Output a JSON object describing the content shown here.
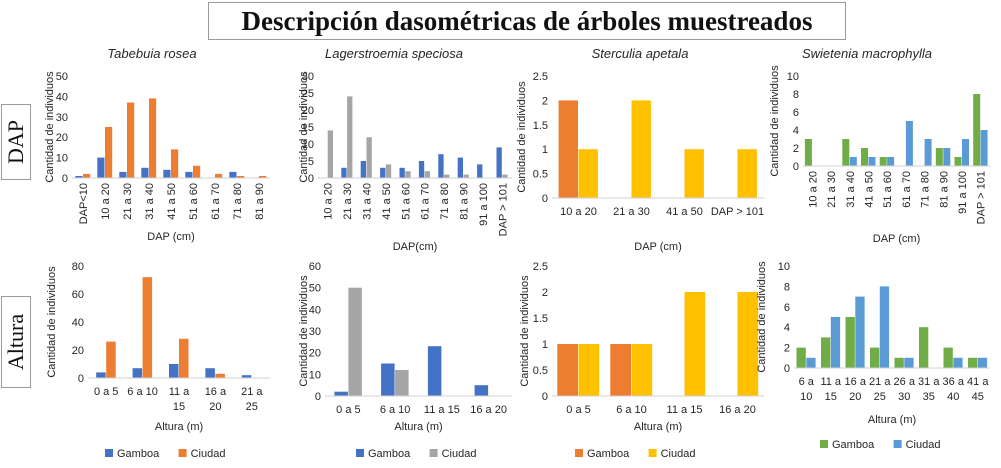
{
  "title": "Descripción dasométricas de árboles muestreados",
  "row_labels": {
    "dap": "DAP",
    "altura": "Altura"
  },
  "legends": [
    {
      "items": [
        {
          "name": "Gamboa",
          "color": "#4472C4"
        },
        {
          "name": "Ciudad",
          "color": "#ED7D31"
        }
      ]
    },
    {
      "items": [
        {
          "name": "Gamboa",
          "color": "#4472C4"
        },
        {
          "name": "Ciudad",
          "color": "#A5A5A5"
        }
      ]
    },
    {
      "items": [
        {
          "name": "Gamboa",
          "color": "#ED7D31"
        },
        {
          "name": "Ciudad",
          "color": "#FFC000"
        }
      ]
    },
    {
      "items": [
        {
          "name": "Gamboa",
          "color": "#70AD47"
        },
        {
          "name": "Ciudad",
          "color": "#5B9BD5"
        }
      ]
    }
  ],
  "chart_data": [
    {
      "type": "bar",
      "title": "Tabebuia rosea",
      "xlabel": "DAP (cm)",
      "ylabel": "Cantidad de individuos",
      "ylim": [
        0,
        50
      ],
      "yticks": [
        0,
        10,
        20,
        30,
        40,
        50
      ],
      "grid": false,
      "categories": [
        "DAP<10",
        "10 a 20",
        "21 a 30",
        "31 a 40",
        "41 a 50",
        "51 a 60",
        "61 a 70",
        "71 a 80",
        "81 a 90"
      ],
      "series": [
        {
          "name": "Gamboa",
          "color": "#4472C4",
          "values": [
            1,
            10,
            3,
            5,
            4,
            3,
            0,
            3,
            0
          ]
        },
        {
          "name": "Ciudad",
          "color": "#ED7D31",
          "values": [
            2,
            25,
            37,
            39,
            14,
            6,
            2,
            1,
            1
          ]
        }
      ]
    },
    {
      "type": "bar",
      "title": "Lagerstroemia speciosa",
      "xlabel": "DAP(cm)",
      "ylabel": "Cantidad de individuos",
      "ylim": [
        0,
        30
      ],
      "yticks": [
        0,
        5,
        10,
        15,
        20,
        25,
        30
      ],
      "grid": false,
      "categories": [
        "10 a 20",
        "21 a 30",
        "31 a 40",
        "41 a 50",
        "51 a 60",
        "61 a 70",
        "71 a 80",
        "81 a 90",
        "91 a 100",
        "DAP > 101"
      ],
      "series": [
        {
          "name": "Gamboa",
          "color": "#4472C4",
          "values": [
            0,
            3,
            5,
            3,
            3,
            5,
            7,
            6,
            4,
            9
          ]
        },
        {
          "name": "Ciudad",
          "color": "#A5A5A5",
          "values": [
            14,
            24,
            12,
            4,
            2,
            2,
            1,
            1,
            0,
            1
          ]
        }
      ]
    },
    {
      "type": "bar",
      "title": "Sterculia apetala",
      "xlabel": "DAP (cm)",
      "ylabel": "Cantidad de individuos",
      "ylim": [
        0,
        2.5
      ],
      "yticks": [
        0,
        0.5,
        1,
        1.5,
        2,
        2.5
      ],
      "grid": false,
      "categories": [
        "10 a 20",
        "21 a 30",
        "41 a 50",
        "DAP > 101"
      ],
      "series": [
        {
          "name": "Gamboa",
          "color": "#ED7D31",
          "values": [
            2,
            0,
            0,
            0
          ]
        },
        {
          "name": "Ciudad",
          "color": "#FFC000",
          "values": [
            1,
            2,
            1,
            1
          ]
        }
      ]
    },
    {
      "type": "bar",
      "title": "Swietenia macrophylla",
      "xlabel": "DAP (cm)",
      "ylabel": "Cantidad de individuos",
      "ylim": [
        0,
        10
      ],
      "yticks": [
        0,
        2,
        4,
        6,
        8,
        10
      ],
      "grid": false,
      "categories": [
        "10 a 20",
        "21 a 30",
        "31 a 40",
        "41 a 50",
        "51 a 60",
        "61 a 70",
        "71 a 80",
        "81 a 90",
        "91 a 100",
        "DAP > 101"
      ],
      "series": [
        {
          "name": "Gamboa",
          "color": "#70AD47",
          "values": [
            3,
            0,
            3,
            2,
            1,
            0,
            0,
            2,
            1,
            8
          ]
        },
        {
          "name": "Ciudad",
          "color": "#5B9BD5",
          "values": [
            0,
            0,
            1,
            1,
            1,
            5,
            3,
            2,
            3,
            4
          ]
        }
      ]
    },
    {
      "type": "bar",
      "title": "",
      "xlabel": "Altura (m)",
      "ylabel": "Cantidad de individuos",
      "ylim": [
        0,
        80
      ],
      "yticks": [
        0,
        20,
        40,
        60,
        80
      ],
      "grid": false,
      "categories": [
        [
          "0 a 5"
        ],
        [
          "6 a 10"
        ],
        [
          "11 a",
          "15"
        ],
        [
          "16 a",
          "20"
        ],
        [
          "21 a",
          "25"
        ]
      ],
      "series": [
        {
          "name": "Gamboa",
          "color": "#4472C4",
          "values": [
            4,
            7,
            10,
            7,
            2
          ]
        },
        {
          "name": "Ciudad",
          "color": "#ED7D31",
          "values": [
            26,
            72,
            28,
            3,
            0
          ]
        }
      ]
    },
    {
      "type": "bar",
      "title": "",
      "xlabel": "Altura (m)",
      "ylabel": "Cantidad de individuos",
      "ylim": [
        0,
        60
      ],
      "yticks": [
        0,
        10,
        20,
        30,
        40,
        50,
        60
      ],
      "grid": false,
      "categories": [
        [
          "0 a 5"
        ],
        [
          "6 a 10"
        ],
        [
          "11 a 15"
        ],
        [
          "16 a 20"
        ]
      ],
      "series": [
        {
          "name": "Gamboa",
          "color": "#4472C4",
          "values": [
            2,
            15,
            23,
            5
          ]
        },
        {
          "name": "Ciudad",
          "color": "#A5A5A5",
          "values": [
            50,
            12,
            0,
            0
          ]
        }
      ]
    },
    {
      "type": "bar",
      "title": "",
      "xlabel": "Altura (m)",
      "ylabel": "Cantidad de individuos",
      "ylim": [
        0,
        2.5
      ],
      "yticks": [
        0,
        0.5,
        1,
        1.5,
        2,
        2.5
      ],
      "grid": false,
      "categories": [
        [
          "0 a 5"
        ],
        [
          "6 a 10"
        ],
        [
          "11 a 15"
        ],
        [
          "16 a 20"
        ]
      ],
      "series": [
        {
          "name": "Gamboa",
          "color": "#ED7D31",
          "values": [
            1,
            1,
            0,
            0
          ]
        },
        {
          "name": "Ciudad",
          "color": "#FFC000",
          "values": [
            1,
            1,
            2,
            2
          ]
        }
      ]
    },
    {
      "type": "bar",
      "title": "",
      "xlabel": "Altura (m)",
      "ylabel": "Cantidad de individuos",
      "ylim": [
        0,
        10
      ],
      "yticks": [
        0,
        2,
        4,
        6,
        8,
        10
      ],
      "grid": false,
      "categories": [
        [
          "6 a",
          "10"
        ],
        [
          "11 a",
          "15"
        ],
        [
          "16 a",
          "20"
        ],
        [
          "21 a",
          "25"
        ],
        [
          "26 a",
          "30"
        ],
        [
          "31 a",
          "35"
        ],
        [
          "36 a",
          "40"
        ],
        [
          "41 a",
          "45"
        ]
      ],
      "series": [
        {
          "name": "Gamboa",
          "color": "#70AD47",
          "values": [
            2,
            3,
            5,
            2,
            1,
            4,
            2,
            1
          ]
        },
        {
          "name": "Ciudad",
          "color": "#5B9BD5",
          "values": [
            1,
            5,
            7,
            8,
            1,
            0,
            1,
            1
          ]
        }
      ]
    }
  ]
}
